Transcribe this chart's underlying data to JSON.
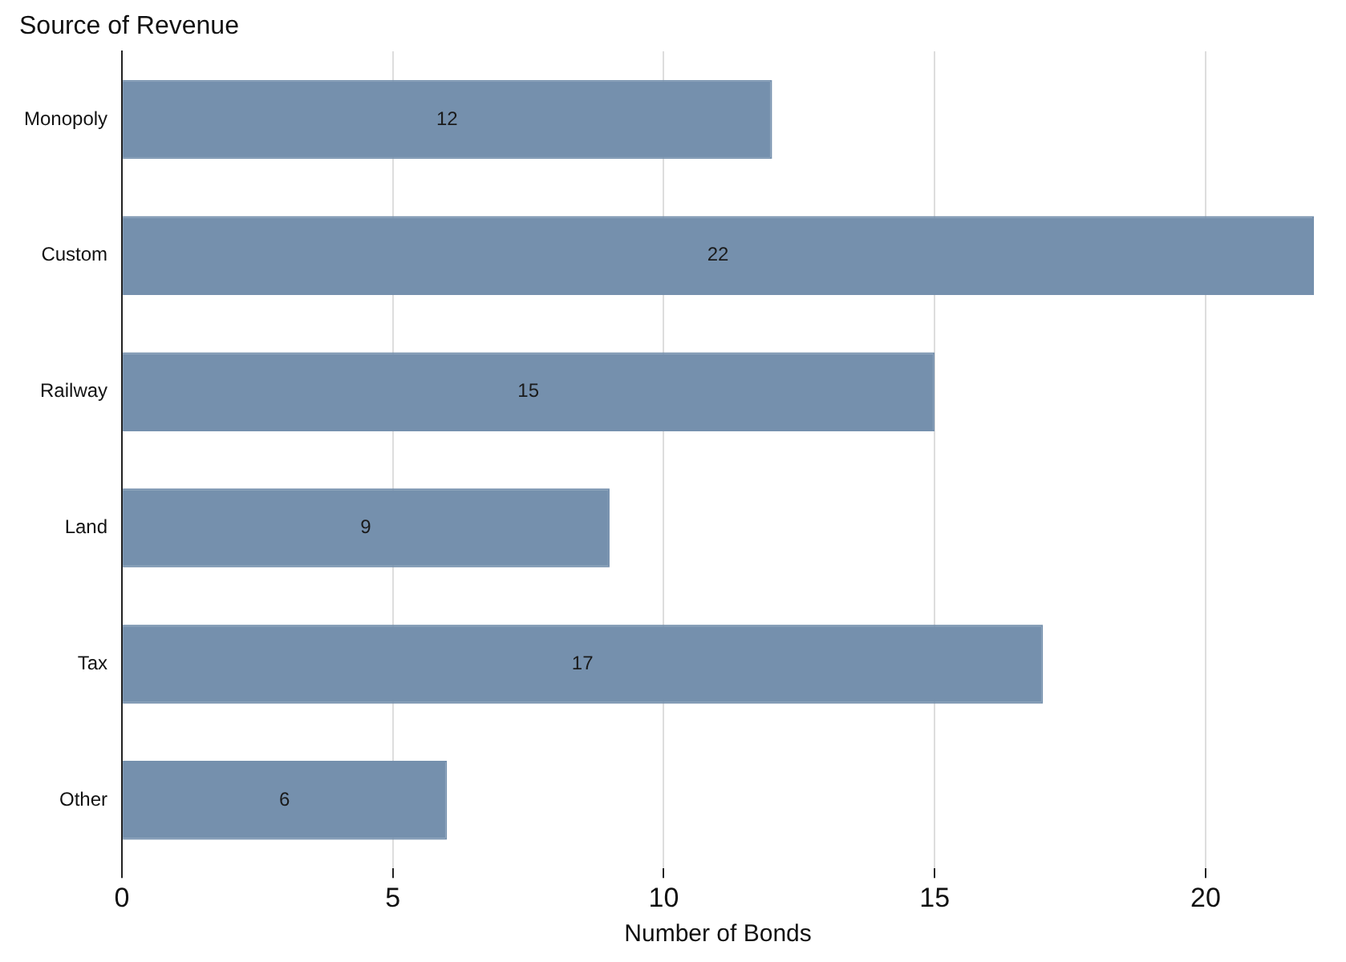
{
  "chart_data": {
    "type": "bar",
    "orientation": "horizontal",
    "ylabel": "Source of Revenue",
    "xlabel": "Number of Bonds",
    "categories": [
      "Monopoly",
      "Custom",
      "Railway",
      "Land",
      "Tax",
      "Other"
    ],
    "values": [
      12,
      22,
      15,
      9,
      17,
      6
    ],
    "color": "#7590ad",
    "xlim": [
      0,
      22
    ],
    "xticks": [
      0,
      5,
      10,
      15,
      20
    ],
    "grid": "x",
    "data_labels": true,
    "legend": false
  }
}
